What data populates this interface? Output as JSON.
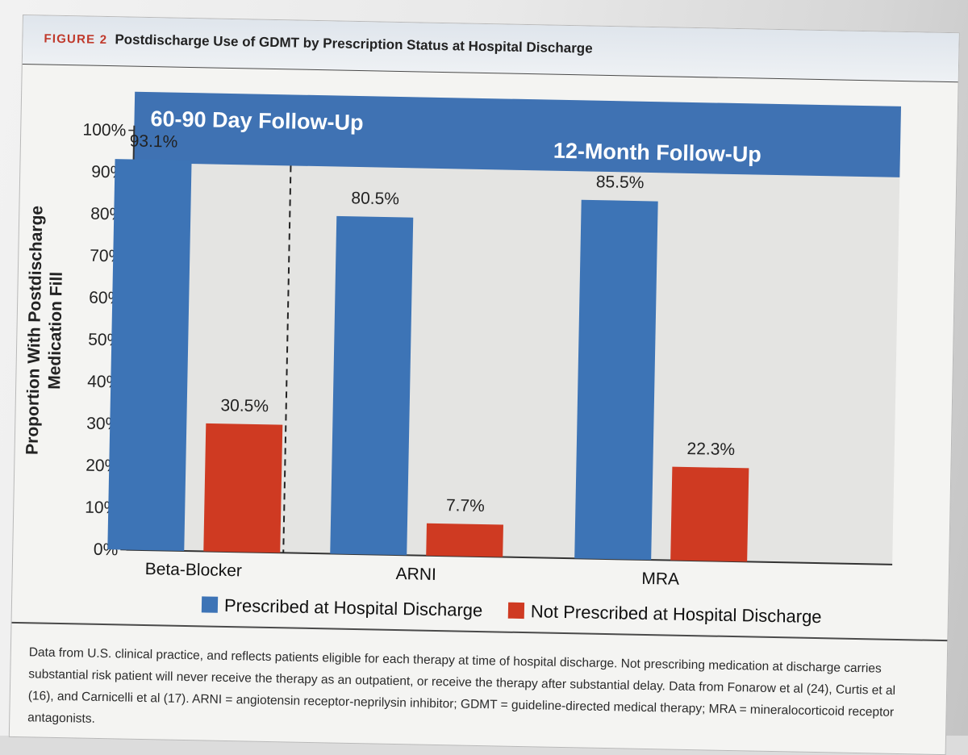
{
  "figure": {
    "label": "FIGURE 2",
    "title": "Postdischarge Use of GDMT by Prescription Status at Hospital Discharge"
  },
  "caption": "Data from U.S. clinical practice, and reflects patients eligible for each therapy at time of hospital discharge. Not prescribing medication at discharge carries substantial risk patient will never receive the therapy as an outpatient, or receive the therapy after substantial delay. Data from Fonarow et al (24), Curtis et al (16), and Carnicelli et al (17). ARNI = angiotensin receptor-neprilysin inhibitor; GDMT = guideline-directed medical therapy; MRA = mineralocorticoid receptor antagonists.",
  "colors": {
    "prescribed": "#3d74b6",
    "not_prescribed": "#cf3a22",
    "band": "#3f72b3",
    "plot_bg": "#e4e4e2"
  },
  "chart_data": {
    "type": "bar",
    "title": "Postdischarge Use of GDMT by Prescription Status at Hospital Discharge",
    "ylabel_lines": [
      "Proportion With Postdischarge",
      "Medication Fill"
    ],
    "xlabel": "",
    "ylim": [
      0,
      100
    ],
    "yticks": [
      0,
      10,
      20,
      30,
      40,
      50,
      60,
      70,
      80,
      90,
      100
    ],
    "ytick_labels": [
      "0%",
      "10%",
      "20%",
      "30%",
      "40%",
      "50%",
      "60%",
      "70%",
      "80%",
      "90%",
      "100%"
    ],
    "categories": [
      "Beta-Blocker",
      "ARNI",
      "MRA"
    ],
    "series": [
      {
        "name": "Prescribed at Hospital Discharge",
        "values": [
          93.1,
          80.5,
          85.5
        ],
        "labels": [
          "93.1%",
          "80.5%",
          "85.5%"
        ]
      },
      {
        "name": "Not Prescribed at Hospital Discharge",
        "values": [
          30.5,
          7.7,
          22.3
        ],
        "labels": [
          "30.5%",
          "7.7%",
          "22.3%"
        ]
      }
    ],
    "panels": [
      {
        "label": "60-90 Day Follow-Up",
        "categories": [
          "Beta-Blocker"
        ]
      },
      {
        "label": "12-Month Follow-Up",
        "categories": [
          "ARNI",
          "MRA"
        ]
      }
    ],
    "legend_position": "bottom",
    "grid": false
  }
}
